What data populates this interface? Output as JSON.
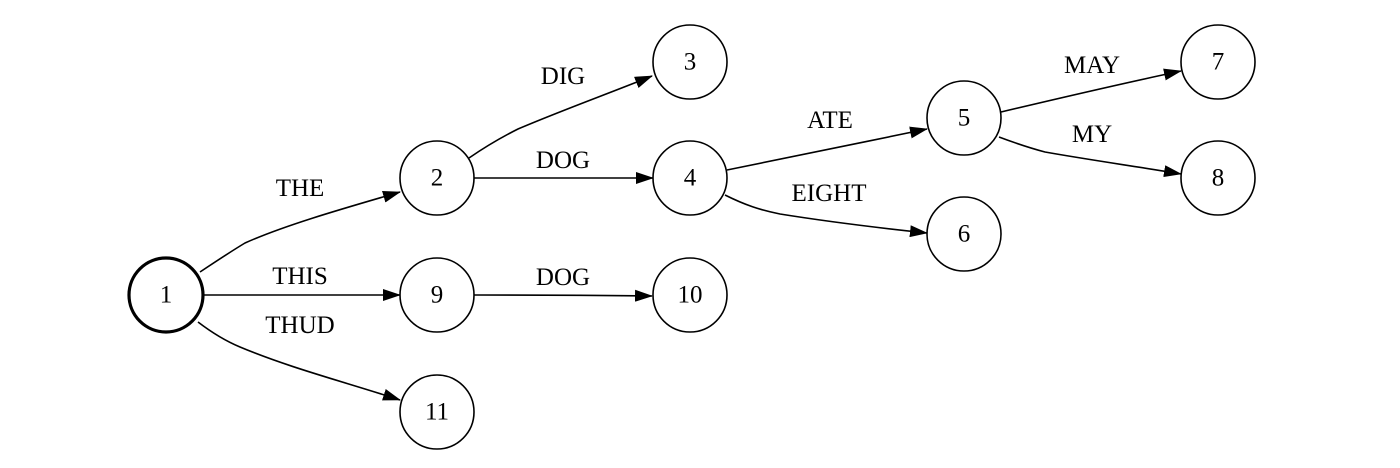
{
  "diagram": {
    "type": "directed-graph",
    "start_node": "1",
    "colors": {
      "stroke": "#000000",
      "background": "#ffffff"
    },
    "nodes": [
      {
        "id": "1",
        "label": "1",
        "start": true
      },
      {
        "id": "2",
        "label": "2"
      },
      {
        "id": "3",
        "label": "3"
      },
      {
        "id": "4",
        "label": "4"
      },
      {
        "id": "5",
        "label": "5"
      },
      {
        "id": "6",
        "label": "6"
      },
      {
        "id": "7",
        "label": "7"
      },
      {
        "id": "8",
        "label": "8"
      },
      {
        "id": "9",
        "label": "9"
      },
      {
        "id": "10",
        "label": "10"
      },
      {
        "id": "11",
        "label": "11"
      }
    ],
    "edges": [
      {
        "from": "1",
        "to": "2",
        "label": "THE"
      },
      {
        "from": "1",
        "to": "9",
        "label": "THIS"
      },
      {
        "from": "1",
        "to": "11",
        "label": "THUD"
      },
      {
        "from": "2",
        "to": "3",
        "label": "DIG"
      },
      {
        "from": "2",
        "to": "4",
        "label": "DOG"
      },
      {
        "from": "4",
        "to": "5",
        "label": "ATE"
      },
      {
        "from": "4",
        "to": "6",
        "label": "EIGHT"
      },
      {
        "from": "5",
        "to": "7",
        "label": "MAY"
      },
      {
        "from": "5",
        "to": "8",
        "label": "MY"
      },
      {
        "from": "9",
        "to": "10",
        "label": "DOG"
      }
    ]
  }
}
